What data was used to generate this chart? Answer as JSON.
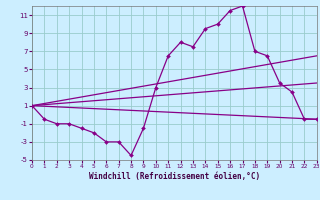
{
  "title": "",
  "xlabel": "Windchill (Refroidissement éolien,°C)",
  "background_color": "#cceeff",
  "grid_color": "#99cccc",
  "line_color": "#880088",
  "x_hours": [
    0,
    1,
    2,
    3,
    4,
    5,
    6,
    7,
    8,
    9,
    10,
    11,
    12,
    13,
    14,
    15,
    16,
    17,
    18,
    19,
    20,
    21,
    22,
    23
  ],
  "series1": [
    1,
    -0.5,
    -1,
    -1,
    -1.5,
    -2,
    -3,
    -3,
    -4.5,
    -1.5,
    3,
    6.5,
    8,
    7.5,
    9.5,
    10,
    11.5,
    12,
    7,
    6.5,
    3.5,
    2.5,
    -0.5,
    -0.5
  ],
  "series2_x": [
    0,
    23
  ],
  "series2_y": [
    1,
    -0.5
  ],
  "series3_x": [
    0,
    23
  ],
  "series3_y": [
    1,
    6.5
  ],
  "series4_x": [
    0,
    23
  ],
  "series4_y": [
    1,
    3.5
  ],
  "ylim": [
    -5,
    12
  ],
  "xlim": [
    0,
    23
  ],
  "yticks": [
    -5,
    -3,
    -1,
    1,
    3,
    5,
    7,
    9,
    11
  ],
  "xticks": [
    0,
    1,
    2,
    3,
    4,
    5,
    6,
    7,
    8,
    9,
    10,
    11,
    12,
    13,
    14,
    15,
    16,
    17,
    18,
    19,
    20,
    21,
    22,
    23
  ]
}
